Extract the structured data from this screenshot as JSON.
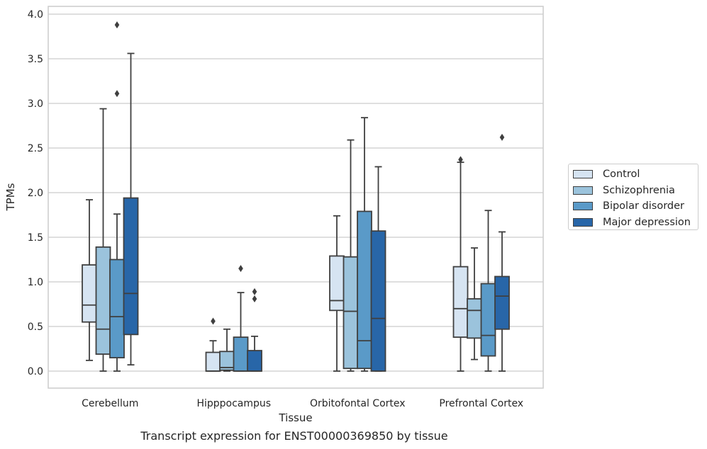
{
  "chart_data": {
    "type": "box",
    "title": "",
    "caption": "Transcript expression for ENST00000369850 by tissue",
    "xlabel": "Tissue",
    "ylabel": "TPMs",
    "ylim": [
      -0.18,
      4.1
    ],
    "yticks": [
      "0.0",
      "0.5",
      "1.0",
      "1.5",
      "2.0",
      "2.5",
      "3.0",
      "3.5",
      "4.0"
    ],
    "grid": "horizontal",
    "legend_position": "right",
    "categories": [
      "Cerebellum",
      "Hipppocampus",
      "Orbitofontal Cortex",
      "Prefrontal Cortex"
    ],
    "series": [
      {
        "name": "Control",
        "color": "#d6e4f2",
        "boxes": [
          {
            "whisker_low": 0.12,
            "q1": 0.55,
            "median": 0.74,
            "q3": 1.19,
            "whisker_high": 1.92,
            "outliers": []
          },
          {
            "whisker_low": 0.0,
            "q1": 0.0,
            "median": 0.0,
            "q3": 0.21,
            "whisker_high": 0.34,
            "outliers": [
              0.56
            ]
          },
          {
            "whisker_low": 0.0,
            "q1": 0.68,
            "median": 0.79,
            "q3": 1.29,
            "whisker_high": 1.74,
            "outliers": []
          },
          {
            "whisker_low": 0.0,
            "q1": 0.38,
            "median": 0.7,
            "q3": 1.17,
            "whisker_high": 2.34,
            "outliers": [
              2.37
            ]
          }
        ]
      },
      {
        "name": "Schizophrenia",
        "color": "#9bc3dc",
        "boxes": [
          {
            "whisker_low": 0.0,
            "q1": 0.19,
            "median": 0.47,
            "q3": 1.39,
            "whisker_high": 2.94,
            "outliers": []
          },
          {
            "whisker_low": 0.0,
            "q1": 0.01,
            "median": 0.04,
            "q3": 0.22,
            "whisker_high": 0.47,
            "outliers": []
          },
          {
            "whisker_low": 0.0,
            "q1": 0.03,
            "median": 0.67,
            "q3": 1.28,
            "whisker_high": 2.59,
            "outliers": []
          },
          {
            "whisker_low": 0.13,
            "q1": 0.37,
            "median": 0.68,
            "q3": 0.81,
            "whisker_high": 1.38,
            "outliers": []
          }
        ]
      },
      {
        "name": "Bipolar disorder",
        "color": "#5a9ac8",
        "boxes": [
          {
            "whisker_low": 0.0,
            "q1": 0.15,
            "median": 0.61,
            "q3": 1.25,
            "whisker_high": 1.76,
            "outliers": [
              3.11,
              3.88
            ]
          },
          {
            "whisker_low": 0.0,
            "q1": 0.0,
            "median": 0.0,
            "q3": 0.38,
            "whisker_high": 0.88,
            "outliers": [
              1.15
            ]
          },
          {
            "whisker_low": 0.0,
            "q1": 0.03,
            "median": 0.34,
            "q3": 1.79,
            "whisker_high": 2.84,
            "outliers": []
          },
          {
            "whisker_low": 0.0,
            "q1": 0.17,
            "median": 0.4,
            "q3": 0.98,
            "whisker_high": 1.8,
            "outliers": []
          }
        ]
      },
      {
        "name": "Major depression",
        "color": "#2866a8",
        "boxes": [
          {
            "whisker_low": 0.07,
            "q1": 0.41,
            "median": 0.87,
            "q3": 1.94,
            "whisker_high": 3.56,
            "outliers": []
          },
          {
            "whisker_low": 0.0,
            "q1": 0.0,
            "median": 0.0,
            "q3": 0.23,
            "whisker_high": 0.39,
            "outliers": [
              0.81,
              0.89
            ]
          },
          {
            "whisker_low": 0.0,
            "q1": 0.0,
            "median": 0.59,
            "q3": 1.57,
            "whisker_high": 2.29,
            "outliers": []
          },
          {
            "whisker_low": 0.0,
            "q1": 0.47,
            "median": 0.84,
            "q3": 1.06,
            "whisker_high": 1.56,
            "outliers": [
              2.62
            ]
          }
        ]
      }
    ]
  }
}
